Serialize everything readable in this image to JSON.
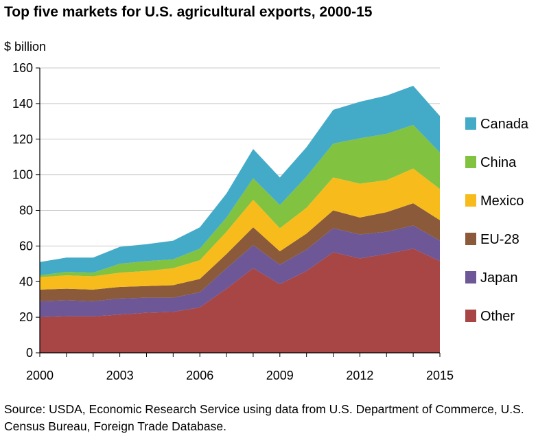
{
  "chart_data": {
    "type": "area",
    "stacked": true,
    "title": "Top five markets for U.S. agricultural exports, 2000-15",
    "unit_label": "$ billion",
    "x": [
      2000,
      2001,
      2002,
      2003,
      2004,
      2005,
      2006,
      2007,
      2008,
      2009,
      2010,
      2011,
      2012,
      2013,
      2014,
      2015
    ],
    "xticks": [
      "2000",
      "2003",
      "2006",
      "2009",
      "2012",
      "2015"
    ],
    "yticks": [
      "0",
      "20",
      "40",
      "60",
      "80",
      "100",
      "120",
      "140",
      "160"
    ],
    "ylim": [
      0,
      160
    ],
    "grid": true,
    "legend_position": "right",
    "series": [
      {
        "name": "Other",
        "color": "#a84545",
        "values": [
          20.0,
          20.5,
          20.5,
          21.5,
          22.5,
          23.0,
          25.5,
          36.0,
          47.5,
          38.5,
          46.0,
          56.5,
          53.0,
          55.5,
          58.5,
          51.5
        ]
      },
      {
        "name": "Japan",
        "color": "#6e5796",
        "values": [
          9.0,
          9.0,
          8.5,
          9.0,
          8.5,
          8.0,
          8.5,
          11.5,
          13.0,
          11.0,
          12.0,
          13.5,
          13.5,
          12.5,
          13.0,
          11.5
        ]
      },
      {
        "name": "EU-28",
        "color": "#8a5a3a",
        "values": [
          6.5,
          6.5,
          6.5,
          6.5,
          6.5,
          7.0,
          7.5,
          8.0,
          10.0,
          7.5,
          9.0,
          10.0,
          9.5,
          11.0,
          12.5,
          11.5
        ]
      },
      {
        "name": "Mexico",
        "color": "#f7bc1c",
        "values": [
          7.0,
          7.5,
          7.5,
          8.0,
          8.5,
          9.5,
          10.5,
          12.5,
          15.5,
          13.0,
          14.5,
          18.5,
          19.0,
          18.0,
          19.5,
          17.5
        ]
      },
      {
        "name": "China",
        "color": "#82c241",
        "values": [
          1.0,
          2.0,
          2.0,
          5.0,
          5.5,
          5.0,
          6.5,
          8.0,
          12.0,
          13.0,
          17.5,
          19.0,
          25.5,
          26.0,
          24.5,
          20.5
        ]
      },
      {
        "name": "Canada",
        "color": "#43abc8",
        "values": [
          7.5,
          8.0,
          8.5,
          9.5,
          9.5,
          10.5,
          12.0,
          13.5,
          16.5,
          15.5,
          16.5,
          19.0,
          20.5,
          21.5,
          22.0,
          20.5
        ]
      }
    ]
  },
  "source": "Source: USDA, Economic Research Service using data from U.S. Department of Commerce, U.S. Census Bureau, Foreign Trade Database."
}
